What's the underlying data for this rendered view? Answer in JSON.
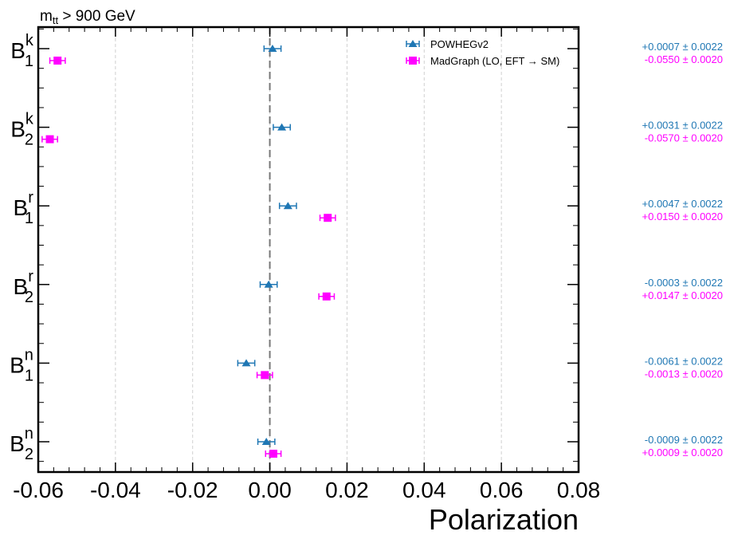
{
  "chart_data": {
    "type": "scatter",
    "orientation": "horizontal-errorbars",
    "title": "m_tt > 900 GeV",
    "title_main": "m",
    "title_sub": "tt",
    "title_rest": " > 900 GeV",
    "xlabel": "Polarization",
    "xlim": [
      -0.06,
      0.08
    ],
    "xticks": [
      "-0.06",
      "-0.04",
      "-0.02",
      "0.00",
      "0.02",
      "0.04",
      "0.06",
      "0.08"
    ],
    "xtick_values": [
      -0.06,
      -0.04,
      -0.02,
      0.0,
      0.02,
      0.04,
      0.06,
      0.08
    ],
    "grid": "vertical dashed",
    "reference_line": 0.0,
    "legend_placement": "top-right",
    "categories": [
      {
        "base": "B",
        "sub": "1",
        "sup": "k"
      },
      {
        "base": "B",
        "sub": "2",
        "sup": "k"
      },
      {
        "base": "B",
        "sub": "1",
        "sup": "r"
      },
      {
        "base": "B",
        "sub": "2",
        "sup": "r"
      },
      {
        "base": "B",
        "sub": "1",
        "sup": "n"
      },
      {
        "base": "B",
        "sub": "2",
        "sup": "n"
      }
    ],
    "series": [
      {
        "name": "POWHEGv2",
        "color": "#1f77b4",
        "marker": "triangle",
        "values": [
          0.0007,
          0.0031,
          0.0047,
          -0.0003,
          -0.0061,
          -0.0009
        ],
        "errors": [
          0.0022,
          0.0022,
          0.0022,
          0.0022,
          0.0022,
          0.0022
        ],
        "labels": [
          "+0.0007 ± 0.0022",
          "+0.0031 ± 0.0022",
          "+0.0047 ± 0.0022",
          "-0.0003 ± 0.0022",
          "-0.0061 ± 0.0022",
          "-0.0009 ± 0.0022"
        ]
      },
      {
        "name": "MadGraph (LO, EFT → SM)",
        "color": "#ff00ff",
        "marker": "square",
        "values": [
          -0.055,
          -0.057,
          0.015,
          0.0147,
          -0.0013,
          0.0009
        ],
        "errors": [
          0.002,
          0.002,
          0.002,
          0.002,
          0.002,
          0.002
        ],
        "labels": [
          "-0.0550 ± 0.0020",
          "-0.0570 ± 0.0020",
          "+0.0150 ± 0.0020",
          "+0.0147 ± 0.0020",
          "-0.0013 ± 0.0020",
          "+0.0009 ± 0.0020"
        ]
      }
    ]
  }
}
